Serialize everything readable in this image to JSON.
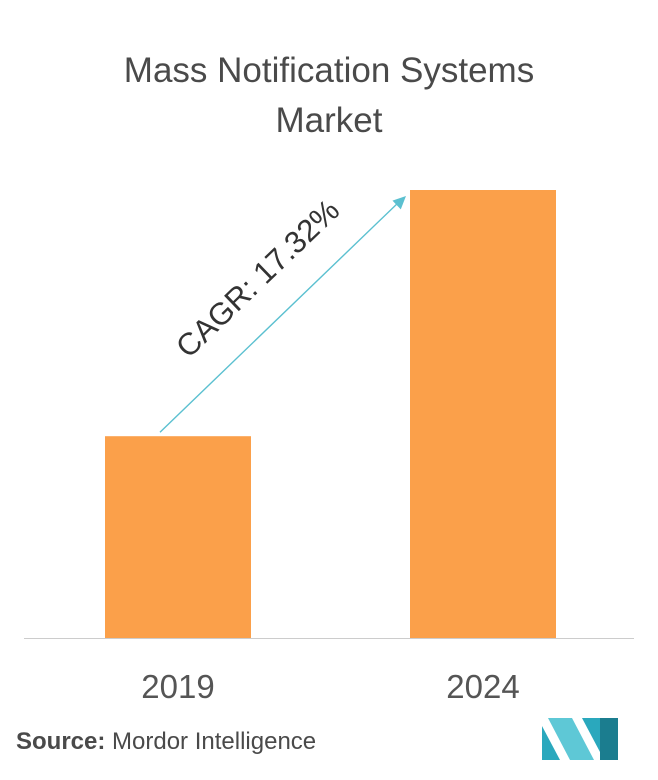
{
  "title_line1": "Mass Notification Systems",
  "title_line2": "Market",
  "chart_data": {
    "type": "bar",
    "categories": [
      "2019",
      "2024"
    ],
    "values": [
      1.0,
      2.22
    ],
    "annotation": "CAGR: 17.32%",
    "bar_color": "#fba04a",
    "arrow_color": "#5bc0d0",
    "axis_color": "#cccccc",
    "ylim": [
      0,
      2.22
    ],
    "grid": false
  },
  "source": {
    "label": "Source:",
    "text": "Mordor Intelligence"
  },
  "logo": {
    "name": "mordor-intelligence-logo",
    "colors": [
      "#2aa8bd",
      "#5ec8d6",
      "#1b7d8f"
    ]
  }
}
